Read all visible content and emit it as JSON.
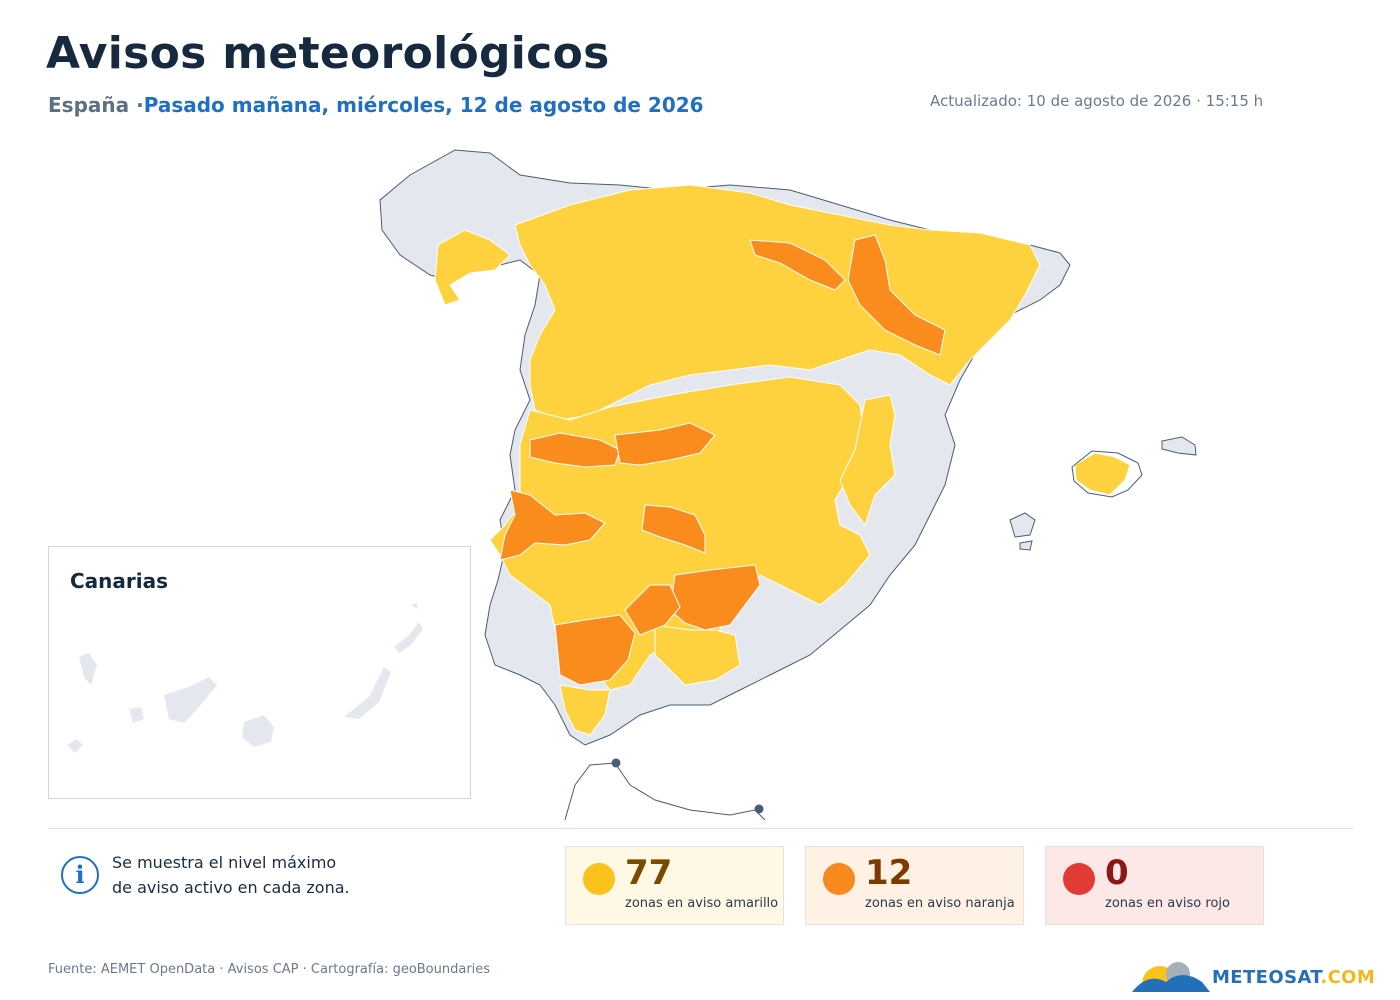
{
  "header": {
    "title": "Avisos meteorológicos",
    "region": "España",
    "separator": "·",
    "date_label": "Pasado mañana, miércoles, 12 de agosto de 2026",
    "updated": "Actualizado: 10 de agosto de 2026 · 15:15 h"
  },
  "map": {
    "legend_colors": {
      "none": "#e4e8ee",
      "yellow": "#fdd23e",
      "orange": "#f98c1c",
      "red": "#e23a35",
      "border": "#4a5d73"
    },
    "inset_label": "Canarias"
  },
  "info": {
    "icon": "info-icon",
    "line1": "Se muestra el nivel máximo",
    "line2": "de aviso activo en cada zona."
  },
  "stats": {
    "yellow": {
      "count": "77",
      "label": "zonas en aviso amarillo"
    },
    "orange": {
      "count": "12",
      "label": "zonas en aviso naranja"
    },
    "red": {
      "count": "0",
      "label": "zonas en aviso rojo"
    }
  },
  "footer": {
    "source": "Fuente: AEMET OpenData · Avisos CAP · Cartografía: geoBoundaries",
    "logo_main": "METEOSAT",
    "logo_tld": ".COM"
  }
}
